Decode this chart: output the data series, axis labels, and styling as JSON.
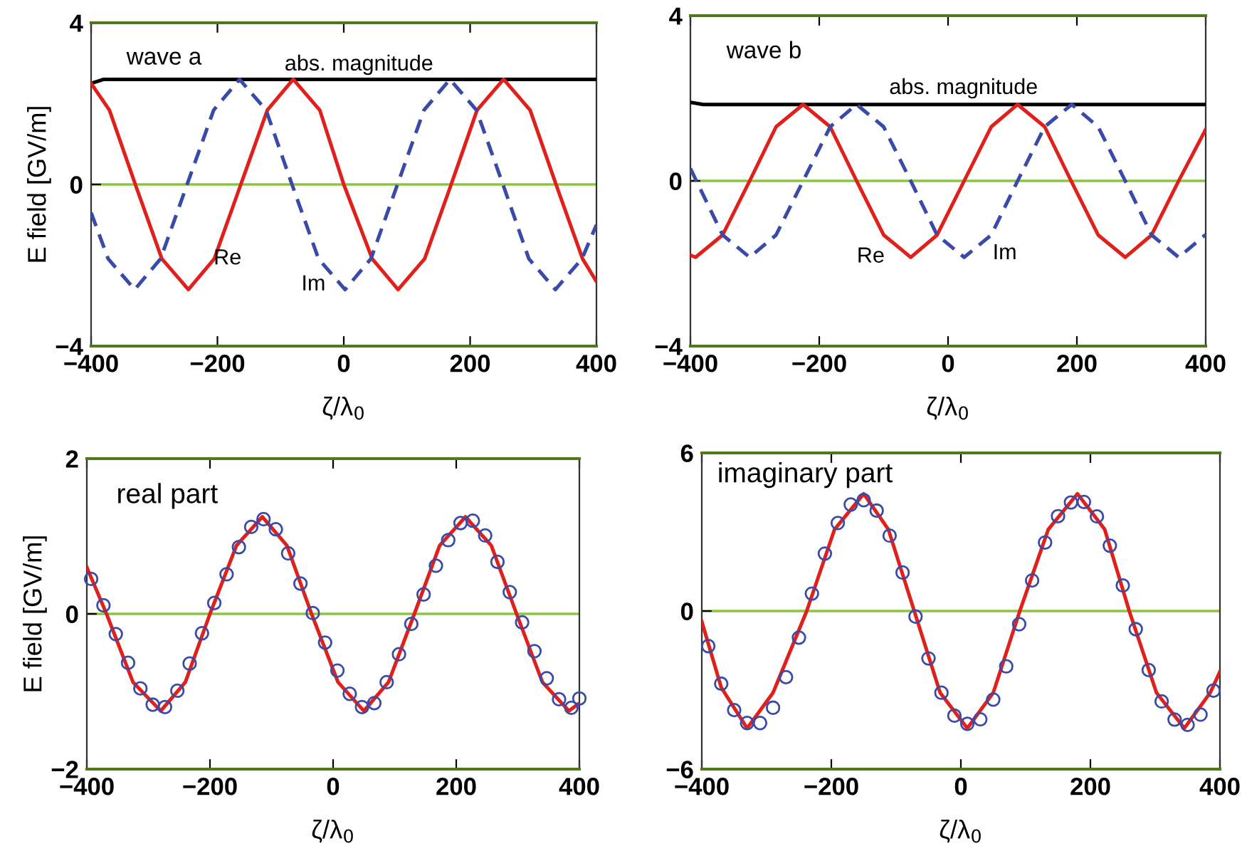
{
  "chart_data": [
    {
      "type": "line",
      "xlabel": "ζ/λ$_{0}$",
      "ylabel": "E field [GV/m]",
      "xlim": [
        -400,
        400
      ],
      "ylim": [
        -4,
        4
      ],
      "xticks": [
        -400,
        -200,
        0,
        200,
        400
      ],
      "yticks": [
        -4,
        0,
        4
      ],
      "grid": false,
      "legend": false,
      "ref_lines": [
        {
          "axis": "y",
          "value": 0,
          "color": "#8cc63f"
        }
      ],
      "annotations": [
        "wave a",
        "abs. magnitude",
        "Re",
        "Im"
      ],
      "series": [
        {
          "color": "#000000",
          "line_style": "solid",
          "x": [
            -400,
            -380,
            400
          ],
          "values": [
            2.5,
            2.6,
            2.6
          ]
        },
        {
          "color": "#e0201b",
          "line_style": "solid",
          "x": [
            -400,
            -371,
            -330,
            -288,
            -246,
            -205,
            -163,
            -121,
            -80,
            -38,
            0,
            45,
            86,
            128,
            170,
            211,
            253,
            295,
            336,
            378,
            400
          ],
          "values": [
            2.5,
            1.84,
            0,
            -1.84,
            -2.6,
            -1.84,
            0,
            1.84,
            2.6,
            1.84,
            0,
            -1.84,
            -2.6,
            -1.84,
            0,
            1.84,
            2.6,
            1.84,
            0,
            -1.84,
            -2.4
          ]
        },
        {
          "color": "#3a4aa8",
          "line_style": "dashed",
          "x": [
            -400,
            -373,
            -331,
            -290,
            -248,
            -206,
            -165,
            -123,
            -82,
            -40,
            2,
            43,
            85,
            127,
            168,
            210,
            252,
            293,
            335,
            377,
            400
          ],
          "values": [
            -0.7,
            -1.84,
            -2.6,
            -1.84,
            0,
            1.84,
            2.6,
            1.84,
            0,
            -1.84,
            -2.6,
            -1.84,
            0,
            1.84,
            2.6,
            1.84,
            0,
            -1.84,
            -2.6,
            -1.84,
            -1.0
          ]
        }
      ]
    },
    {
      "type": "line",
      "xlabel": "ζ/λ$_{0}$",
      "xlim": [
        -400,
        400
      ],
      "ylim": [
        -4,
        4
      ],
      "xticks": [
        -400,
        -200,
        0,
        200,
        400
      ],
      "yticks": [
        -4,
        0,
        4
      ],
      "grid": false,
      "legend": false,
      "ref_lines": [
        {
          "axis": "y",
          "value": 0,
          "color": "#8cc63f"
        }
      ],
      "annotations": [
        "wave b",
        "abs. magnitude",
        "Re",
        "Im"
      ],
      "series": [
        {
          "color": "#000000",
          "line_style": "solid",
          "x": [
            -400,
            -380,
            400
          ],
          "values": [
            1.9,
            1.85,
            1.85
          ]
        },
        {
          "color": "#e0201b",
          "line_style": "solid",
          "x": [
            -400,
            -392,
            -350,
            -308,
            -267,
            -225,
            -183,
            -142,
            -100,
            -58,
            -17,
            25,
            67,
            108,
            150,
            191,
            233,
            275,
            316,
            358,
            400
          ],
          "values": [
            -1.8,
            -1.85,
            -1.31,
            0,
            1.31,
            1.85,
            1.31,
            0,
            -1.31,
            -1.85,
            -1.31,
            0,
            1.31,
            1.85,
            1.31,
            0,
            -1.31,
            -1.85,
            -1.31,
            0,
            1.25
          ]
        },
        {
          "color": "#3a4aa8",
          "line_style": "dashed",
          "x": [
            -400,
            -350,
            -308,
            -267,
            -225,
            -183,
            -142,
            -100,
            -58,
            -17,
            25,
            67,
            108,
            150,
            192,
            233,
            275,
            316,
            358,
            400
          ],
          "values": [
            0.3,
            -1.31,
            -1.85,
            -1.31,
            0,
            1.31,
            1.85,
            1.31,
            0,
            -1.31,
            -1.85,
            -1.31,
            0,
            1.31,
            1.85,
            1.31,
            0,
            -1.31,
            -1.85,
            -1.3
          ]
        }
      ]
    },
    {
      "type": "line",
      "xlabel": "ζ/λ$_{0}$",
      "ylabel": "E field [GV/m]",
      "xlim": [
        -400,
        400
      ],
      "ylim": [
        -2,
        2
      ],
      "xticks": [
        -400,
        -200,
        0,
        200,
        400
      ],
      "yticks": [
        -2,
        0,
        2
      ],
      "grid": false,
      "legend": false,
      "ref_lines": [
        {
          "axis": "y",
          "value": 0,
          "color": "#8cc63f"
        }
      ],
      "annotations": [
        "real part"
      ],
      "series": [
        {
          "type": "scatter",
          "marker": "circle",
          "color": "#3a4aa8",
          "x": [
            -393,
            -373,
            -353,
            -333,
            -313,
            -293,
            -273,
            -253,
            -233,
            -213,
            -193,
            -173,
            -153,
            -133,
            -113,
            -93,
            -73,
            -53,
            -33,
            -13,
            7,
            27,
            47,
            67,
            87,
            107,
            127,
            147,
            167,
            187,
            207,
            227,
            247,
            267,
            287,
            307,
            327,
            347,
            367,
            387,
            400
          ],
          "values": [
            0.45,
            0.11,
            -0.26,
            -0.63,
            -0.96,
            -1.17,
            -1.2,
            -0.99,
            -0.64,
            -0.25,
            0.14,
            0.51,
            0.86,
            1.12,
            1.22,
            1.09,
            0.78,
            0.39,
            0.01,
            -0.37,
            -0.73,
            -1.03,
            -1.2,
            -1.15,
            -0.88,
            -0.52,
            -0.13,
            0.25,
            0.62,
            0.95,
            1.17,
            1.2,
            1.01,
            0.67,
            0.28,
            -0.11,
            -0.48,
            -0.83,
            -1.1,
            -1.21,
            -1.09
          ]
        },
        {
          "color": "#e0201b",
          "line_style": "solid",
          "x": [
            -400,
            -368,
            -325,
            -280,
            -240,
            -200,
            -157,
            -115,
            -75,
            -35,
            8,
            50,
            90,
            132,
            173,
            215,
            257,
            298,
            340,
            383,
            400
          ],
          "values": [
            0.6,
            0,
            -0.88,
            -1.25,
            -0.88,
            0,
            0.88,
            1.25,
            0.88,
            0,
            -0.88,
            -1.25,
            -0.88,
            0,
            0.88,
            1.25,
            0.88,
            0,
            -0.88,
            -1.25,
            -1.15
          ]
        }
      ]
    },
    {
      "type": "line",
      "xlabel": "ζ/λ$_{0}$",
      "xlim": [
        -400,
        400
      ],
      "ylim": [
        -6,
        6
      ],
      "xticks": [
        -400,
        -200,
        0,
        200,
        400
      ],
      "yticks": [
        -6,
        0,
        6
      ],
      "grid": false,
      "legend": false,
      "ref_lines": [
        {
          "axis": "y",
          "value": 0,
          "color": "#8cc63f"
        }
      ],
      "annotations": [
        "imaginary part"
      ],
      "series": [
        {
          "type": "scatter",
          "marker": "circle",
          "color": "#3a4aa8",
          "x": [
            -390,
            -370,
            -350,
            -330,
            -310,
            -290,
            -270,
            -250,
            -230,
            -210,
            -190,
            -170,
            -150,
            -130,
            -110,
            -90,
            -70,
            -50,
            -30,
            -10,
            10,
            30,
            50,
            70,
            90,
            110,
            130,
            150,
            170,
            190,
            210,
            230,
            250,
            270,
            290,
            310,
            330,
            350,
            370,
            390
          ],
          "values": [
            -1.33,
            -2.76,
            -3.76,
            -4.25,
            -4.25,
            -3.67,
            -2.51,
            -1.01,
            0.66,
            2.18,
            3.34,
            4.04,
            4.21,
            3.81,
            2.86,
            1.46,
            -0.21,
            -1.8,
            -3.1,
            -3.97,
            -4.28,
            -4.11,
            -3.36,
            -2.1,
            -0.5,
            1.16,
            2.6,
            3.6,
            4.12,
            4.14,
            3.59,
            2.48,
            0.97,
            -0.69,
            -2.24,
            -3.43,
            -4.12,
            -4.32,
            -3.93,
            -3.02
          ]
        },
        {
          "color": "#e0201b",
          "line_style": "solid",
          "x": [
            -400,
            -370,
            -330,
            -290,
            -238,
            -195,
            -150,
            -112,
            -72,
            -32,
            10,
            50,
            91,
            135,
            180,
            222,
            260,
            302,
            345,
            385,
            400
          ],
          "values": [
            -0.4,
            -2.9,
            -4.45,
            -3.1,
            0,
            3.1,
            4.45,
            3.1,
            0,
            -3.1,
            -4.45,
            -3.1,
            0,
            3.1,
            4.45,
            3.1,
            0,
            -3.1,
            -4.45,
            -3.1,
            -2.3
          ]
        }
      ]
    }
  ]
}
